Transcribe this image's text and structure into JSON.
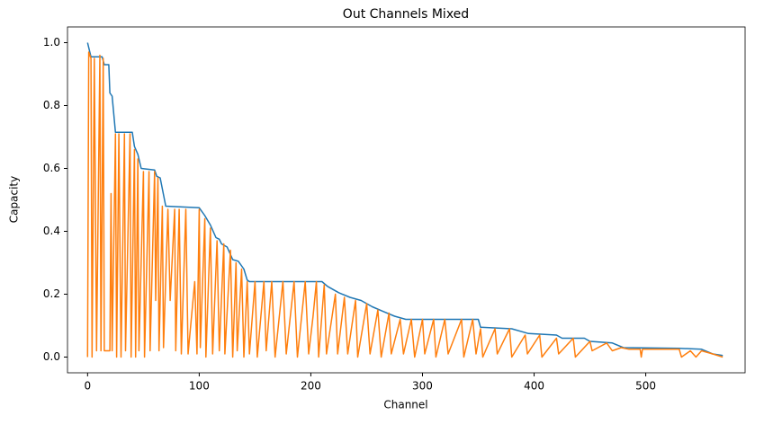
{
  "chart_data": {
    "type": "line",
    "title": "Out Channels Mixed",
    "x_label": "Channel",
    "y_label": "Capacity",
    "xlim": [
      -18,
      589
    ],
    "ylim": [
      -0.05,
      1.05
    ],
    "xticks": [
      0,
      100,
      200,
      300,
      400,
      500
    ],
    "yticks": [
      {
        "value": 0,
        "label": "0.0"
      },
      0.2,
      0.4,
      0.6,
      0.8,
      {
        "value": 1,
        "label": "1.0"
      }
    ],
    "series": [
      {
        "color": "#1f77b4",
        "x": [
          0,
          3,
          13,
          15,
          19,
          20,
          22,
          25,
          40,
          42,
          45,
          48,
          60,
          62,
          65,
          70,
          100,
          105,
          110,
          115,
          118,
          120,
          125,
          130,
          135,
          140,
          143,
          145,
          210,
          215,
          225,
          235,
          245,
          255,
          265,
          275,
          285,
          350,
          352,
          380,
          395,
          420,
          425,
          445,
          450,
          470,
          480,
          530,
          550,
          560,
          569
        ],
        "values": [
          1.0,
          0.955,
          0.955,
          0.93,
          0.93,
          0.84,
          0.83,
          0.715,
          0.715,
          0.67,
          0.645,
          0.6,
          0.595,
          0.575,
          0.57,
          0.48,
          0.475,
          0.45,
          0.42,
          0.38,
          0.375,
          0.36,
          0.35,
          0.31,
          0.305,
          0.28,
          0.245,
          0.24,
          0.24,
          0.225,
          0.205,
          0.19,
          0.18,
          0.16,
          0.145,
          0.13,
          0.12,
          0.12,
          0.095,
          0.09,
          0.075,
          0.07,
          0.06,
          0.06,
          0.05,
          0.045,
          0.03,
          0.028,
          0.025,
          0.01,
          0.005
        ]
      },
      {
        "color": "#ff7f0e",
        "x": [
          0,
          1,
          3,
          4,
          6,
          8,
          11,
          12,
          14,
          15,
          20,
          21,
          22,
          25,
          26,
          28,
          30,
          33,
          34,
          38,
          39,
          42,
          43,
          45,
          46,
          50,
          51,
          55,
          56,
          60,
          61,
          63,
          64,
          67,
          68,
          72,
          74,
          78,
          79,
          82,
          84,
          88,
          90,
          96,
          98,
          100,
          101,
          105,
          106,
          110,
          112,
          116,
          118,
          122,
          123,
          128,
          130,
          133,
          134,
          138,
          140,
          143,
          145,
          150,
          152,
          158,
          160,
          165,
          168,
          175,
          178,
          185,
          188,
          195,
          198,
          202,
          205,
          207,
          212,
          214,
          222,
          224,
          230,
          233,
          240,
          242,
          250,
          253,
          260,
          263,
          270,
          272,
          280,
          283,
          290,
          293,
          300,
          302,
          310,
          312,
          320,
          323,
          335,
          337,
          345,
          348,
          352,
          354,
          365,
          367,
          378,
          380,
          392,
          394,
          405,
          407,
          420,
          422,
          435,
          437,
          450,
          452,
          465,
          470,
          478,
          485,
          495,
          496,
          497,
          530,
          532,
          540,
          545,
          550,
          560,
          569
        ],
        "values": [
          0,
          0.97,
          0.95,
          0,
          0.95,
          0.02,
          0.96,
          0.02,
          0.95,
          0.02,
          0.02,
          0.52,
          0.02,
          0.71,
          0,
          0.71,
          0,
          0.71,
          0.02,
          0.71,
          0,
          0.66,
          0,
          0.63,
          0.02,
          0.59,
          0,
          0.59,
          0.02,
          0.59,
          0.18,
          0.57,
          0.02,
          0.48,
          0.03,
          0.47,
          0.18,
          0.47,
          0.02,
          0.47,
          0.01,
          0.47,
          0.01,
          0.24,
          0.01,
          0.47,
          0.03,
          0.44,
          0,
          0.41,
          0.01,
          0.37,
          0.02,
          0.36,
          0.01,
          0.34,
          0,
          0.3,
          0.02,
          0.28,
          0,
          0.24,
          0.01,
          0.24,
          0,
          0.24,
          0.02,
          0.24,
          0,
          0.24,
          0.01,
          0.24,
          0,
          0.24,
          0.01,
          0.13,
          0.24,
          0,
          0.23,
          0.01,
          0.2,
          0.01,
          0.19,
          0.01,
          0.18,
          0,
          0.17,
          0.01,
          0.15,
          0,
          0.14,
          0.01,
          0.12,
          0.01,
          0.12,
          0,
          0.12,
          0.01,
          0.12,
          0,
          0.12,
          0.01,
          0.12,
          0,
          0.12,
          0.01,
          0.09,
          0,
          0.09,
          0.01,
          0.09,
          0,
          0.07,
          0.01,
          0.07,
          0,
          0.06,
          0.01,
          0.06,
          0,
          0.05,
          0.02,
          0.045,
          0.02,
          0.03,
          0.025,
          0.025,
          0,
          0.025,
          0.025,
          0,
          0.02,
          0,
          0.02,
          0.01,
          0
        ]
      }
    ]
  }
}
